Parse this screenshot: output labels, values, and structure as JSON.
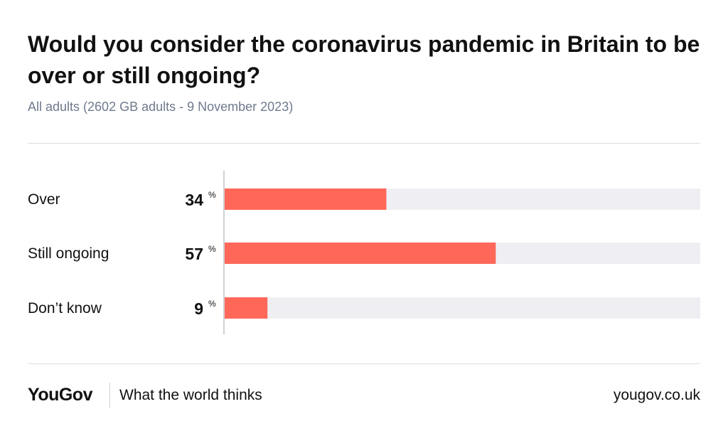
{
  "header": {
    "title": "Would you consider the coronavirus pandemic in Britain to be over or still ongoing?",
    "subtitle": "All adults (2602 GB adults - 9 November 2023)"
  },
  "chart_data": {
    "type": "bar",
    "orientation": "horizontal",
    "title": "Would you consider the coronavirus pandemic in Britain to be over or still ongoing?",
    "subtitle": "All adults (2602 GB adults - 9 November 2023)",
    "categories": [
      "Over",
      "Still ongoing",
      "Don’t know"
    ],
    "values": [
      34,
      57,
      9
    ],
    "unit": "%",
    "xlim": [
      0,
      100
    ],
    "grid": false,
    "legend": "none",
    "colors": {
      "bar": "#ff6859",
      "track": "#efeff3",
      "axis": "#cfd1d6"
    }
  },
  "footer": {
    "logo": "YouGov",
    "tagline": "What the world thinks",
    "url": "yougov.co.uk"
  }
}
